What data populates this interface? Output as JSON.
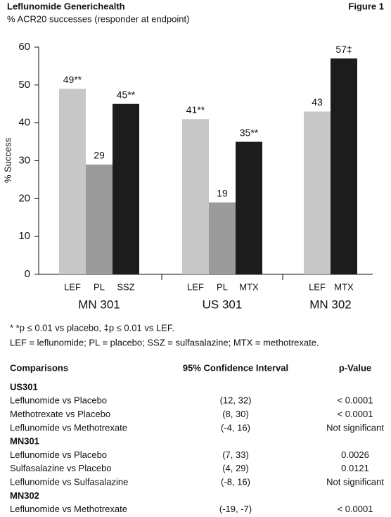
{
  "header": {
    "title": "Leflunomide Generichealth",
    "figure": "Figure 1",
    "subtitle": "% ACR20 successes (responder at endpoint)"
  },
  "chart_data": {
    "type": "grouped-bar",
    "y_label": "% Success",
    "ylim": [
      0,
      60
    ],
    "yticks": [
      0,
      10,
      20,
      30,
      40,
      50,
      60
    ],
    "grid": false,
    "groups": [
      {
        "name": "MN 301",
        "categories": [
          "LEF",
          "PL",
          "SSZ"
        ],
        "values": [
          49,
          29,
          45
        ],
        "value_labels": [
          "49**",
          "29",
          "45**"
        ],
        "colors": [
          "#c6c7c6",
          "#9a9b9a",
          "#1c1c1c"
        ]
      },
      {
        "name": "US 301",
        "categories": [
          "LEF",
          "PL",
          "MTX"
        ],
        "values": [
          41,
          19,
          35
        ],
        "value_labels": [
          "41**",
          "19",
          "35**"
        ],
        "colors": [
          "#c6c7c6",
          "#9a9b9a",
          "#1c1c1c"
        ]
      },
      {
        "name": "MN 302",
        "categories": [
          "LEF",
          "MTX"
        ],
        "values": [
          43,
          57
        ],
        "value_labels": [
          "43",
          "57‡"
        ],
        "colors": [
          "#c6c7c6",
          "#1c1c1c"
        ]
      }
    ]
  },
  "footnotes": [
    "* *p ≤ 0.01 vs placebo, ‡p ≤ 0.01 vs LEF.",
    "LEF = leflunomide; PL = placebo; SSZ = sulfasalazine; MTX = methotrexate."
  ],
  "table": {
    "columns": [
      "Comparisons",
      "95% Confidence Interval",
      "p-Value"
    ],
    "sections": [
      {
        "name": "US301",
        "rows": [
          [
            "Leflunomide vs Placebo",
            "(12, 32)",
            "< 0.0001"
          ],
          [
            "Methotrexate vs Placebo",
            "(8, 30)",
            "< 0.0001"
          ],
          [
            "Leflunomide vs Methotrexate",
            "(-4, 16)",
            "Not significant"
          ]
        ]
      },
      {
        "name": "MN301",
        "rows": [
          [
            "Leflunomide vs Placebo",
            "(7, 33)",
            "0.0026"
          ],
          [
            "Sulfasalazine vs Placebo",
            "(4, 29)",
            "0.0121"
          ],
          [
            "Leflunomide vs Sulfasalazine",
            "(-8, 16)",
            "Not significant"
          ]
        ]
      },
      {
        "name": "MN302",
        "rows": [
          [
            "Leflunomide vs Methotrexate",
            "(-19, -7)",
            "< 0.0001"
          ]
        ]
      }
    ]
  }
}
